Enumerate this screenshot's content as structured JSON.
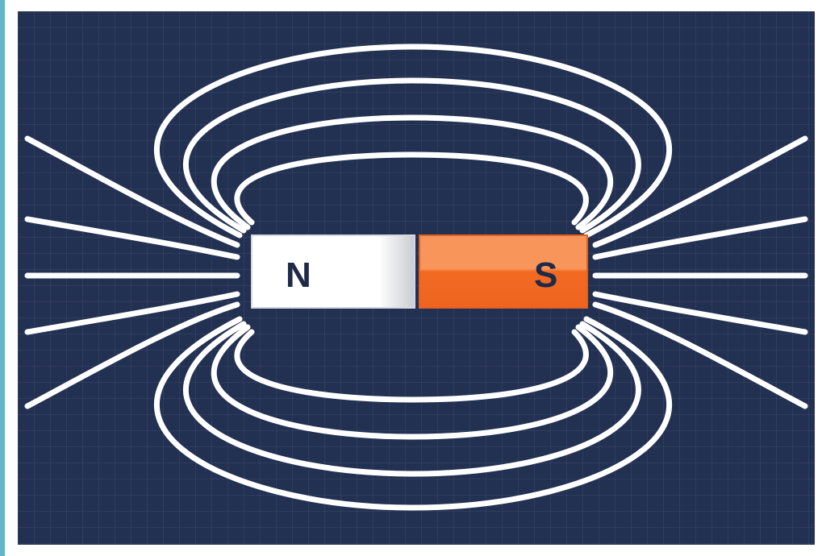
{
  "magnet": {
    "north_label": "N",
    "south_label": "S",
    "north_color": "#ffffff",
    "south_color": "#f26a22",
    "south_highlight": "#f7955a"
  },
  "colors": {
    "background": "#223052",
    "field_lines": "#ffffff",
    "edge_accent": "#5fb7c9"
  }
}
